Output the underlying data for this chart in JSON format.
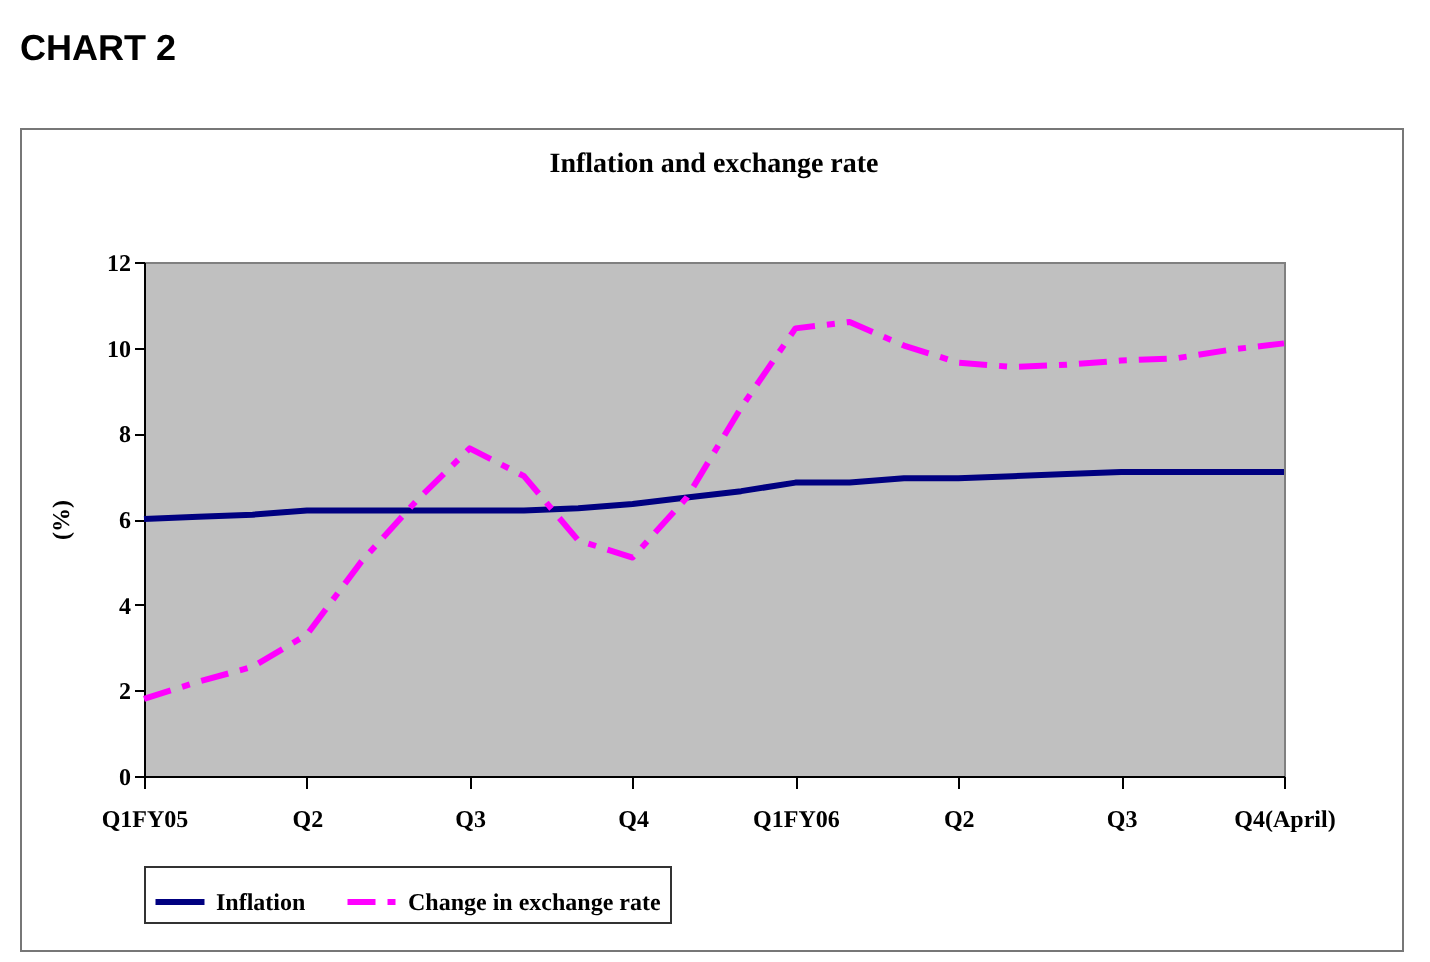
{
  "chart_data": {
    "type": "line",
    "title": "CHART 2",
    "subtitle": "Inflation and exchange rate",
    "ylabel": "(%)",
    "categories": [
      "Q1FY05",
      null,
      null,
      "Q2",
      null,
      null,
      "Q3",
      null,
      null,
      "Q4",
      null,
      null,
      "Q1FY06",
      null,
      null,
      "Q2",
      null,
      null,
      "Q3",
      null,
      null,
      "Q4(April)"
    ],
    "series": [
      {
        "name": "Inflation",
        "color": "#000080",
        "line_style": "solid",
        "values": [
          6.0,
          6.05,
          6.1,
          6.2,
          6.2,
          6.2,
          6.2,
          6.2,
          6.25,
          6.35,
          6.5,
          6.65,
          6.85,
          6.85,
          6.95,
          6.95,
          7.0,
          7.05,
          7.1,
          7.1,
          7.1,
          7.1
        ]
      },
      {
        "name": "Change in exchange rate",
        "color": "#ff00ff",
        "line_style": "dashed",
        "values": [
          1.8,
          2.2,
          2.55,
          3.3,
          5.0,
          6.4,
          7.65,
          7.0,
          5.5,
          5.1,
          6.5,
          8.6,
          10.45,
          10.6,
          10.05,
          9.65,
          9.55,
          9.6,
          9.7,
          9.75,
          9.95,
          10.1
        ]
      }
    ],
    "ylim": [
      0,
      12
    ],
    "yticks": [
      0,
      2,
      4,
      6,
      8,
      10,
      12
    ],
    "grid": false,
    "legend": "bottom",
    "marker": "none"
  }
}
